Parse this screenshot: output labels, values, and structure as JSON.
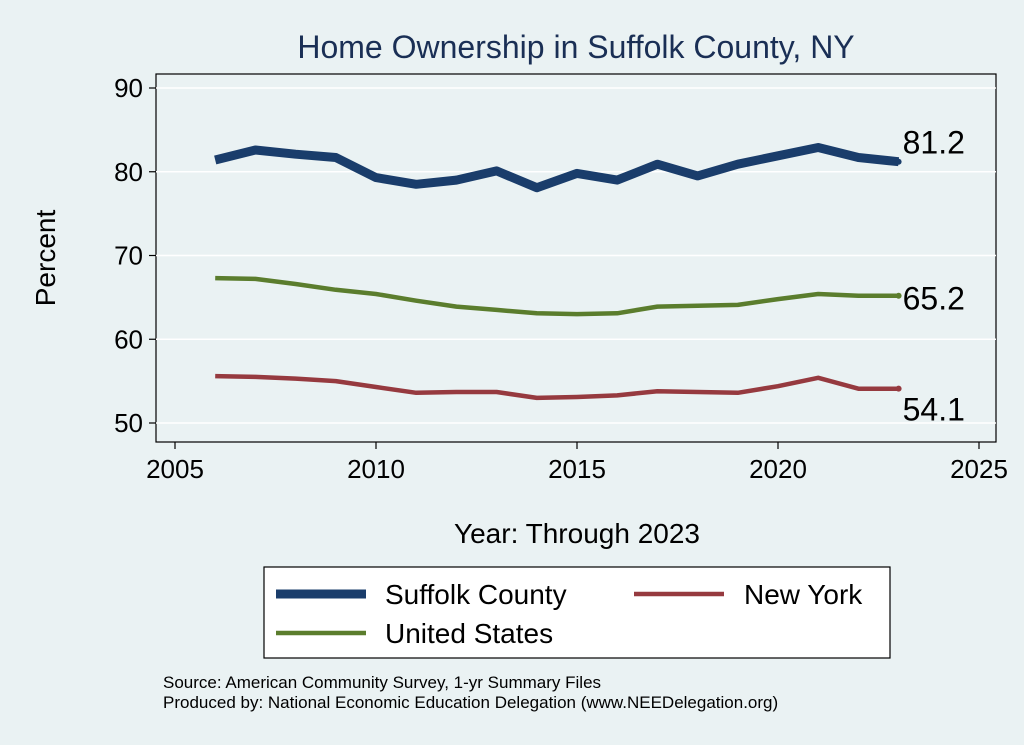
{
  "chart_data": {
    "type": "line",
    "title": "Home Ownership in Suffolk County, NY",
    "xlabel": "Year: Through 2023",
    "ylabel": "Percent",
    "xlim": [
      2005,
      2025
    ],
    "ylim": [
      50,
      90
    ],
    "xticks": [
      2005,
      2010,
      2015,
      2020,
      2025
    ],
    "yticks": [
      50,
      60,
      70,
      80,
      90
    ],
    "grid": true,
    "x": [
      2006,
      2007,
      2008,
      2009,
      2010,
      2011,
      2012,
      2013,
      2014,
      2015,
      2016,
      2017,
      2018,
      2019,
      2020,
      2021,
      2022,
      2023
    ],
    "series": [
      {
        "name": "Suffolk County",
        "color": "#1a3d6b",
        "values": [
          81.4,
          82.6,
          82.1,
          81.7,
          79.3,
          78.5,
          79.0,
          80.1,
          78.1,
          79.8,
          79.0,
          80.9,
          79.5,
          80.9,
          81.9,
          82.9,
          81.7,
          81.2
        ],
        "end_label": "81.2"
      },
      {
        "name": "New York",
        "color": "#963a3f",
        "values": [
          55.6,
          55.5,
          55.3,
          55.0,
          54.3,
          53.6,
          53.7,
          53.7,
          53.0,
          53.1,
          53.3,
          53.8,
          53.7,
          53.6,
          54.4,
          55.4,
          54.1,
          54.1
        ],
        "end_label": "54.1"
      },
      {
        "name": "United States",
        "color": "#5b7d2d",
        "values": [
          67.3,
          67.2,
          66.6,
          65.9,
          65.4,
          64.6,
          63.9,
          63.5,
          63.1,
          63.0,
          63.1,
          63.9,
          64.0,
          64.1,
          64.8,
          65.4,
          65.2,
          65.2
        ],
        "end_label": "65.2"
      }
    ],
    "legend": {
      "placement": "bottom",
      "entries": [
        "Suffolk County",
        "New York",
        "United States"
      ]
    }
  },
  "footer": {
    "source": "Source: American Community Survey, 1-yr Summary Files",
    "produced_by": "Produced by: National Economic Education Delegation (www.NEEDelegation.org)"
  }
}
